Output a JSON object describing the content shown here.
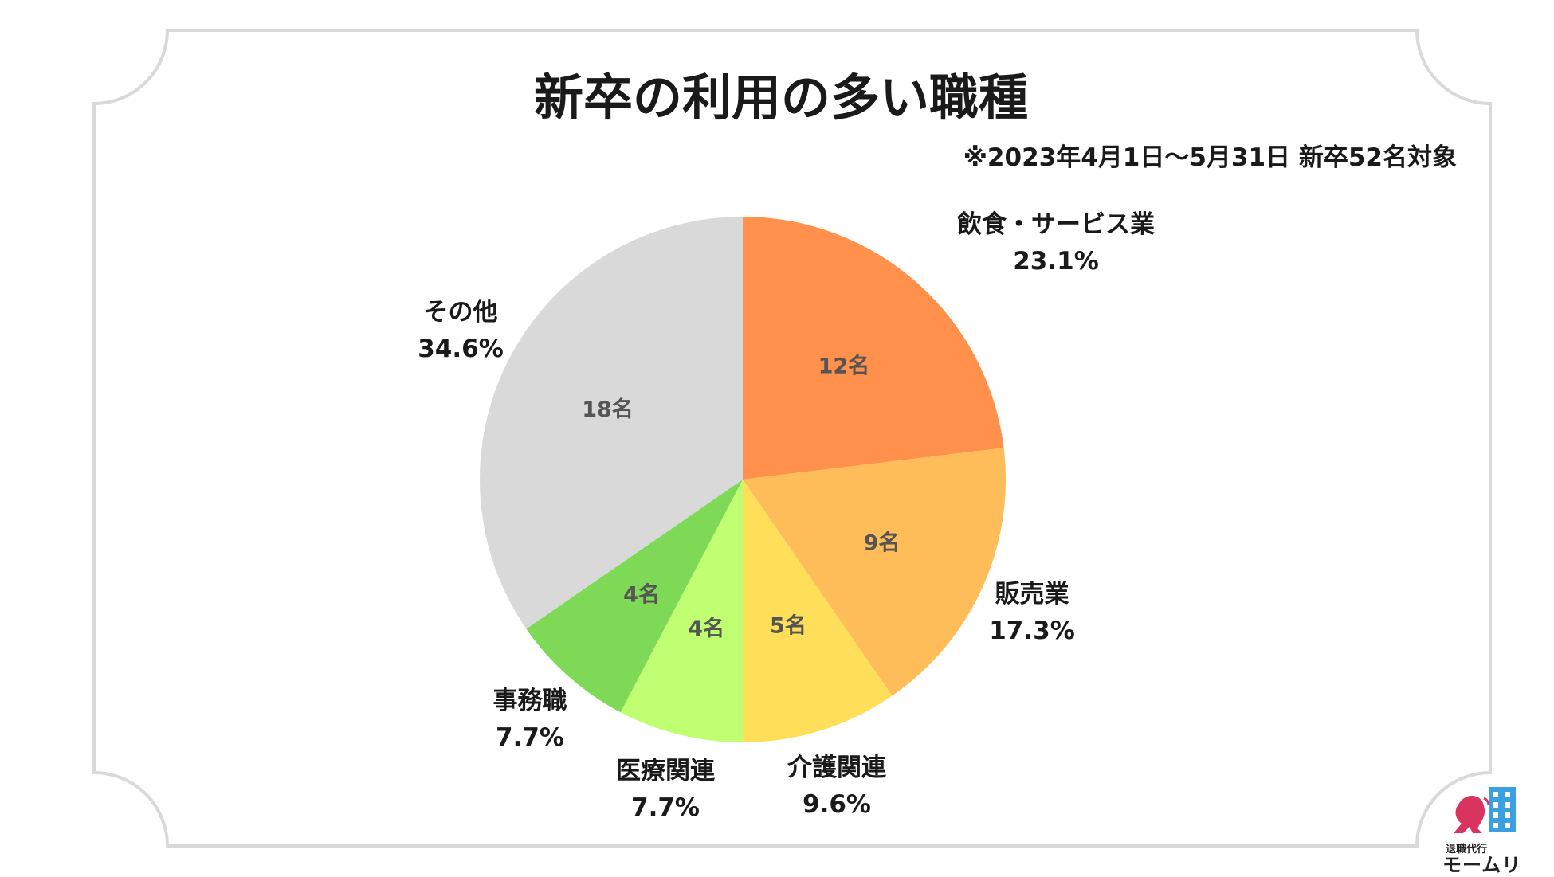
{
  "title": "新卒の利用の多い職種",
  "note": "※2023年4月1日〜5月31日 新卒52名対象",
  "logo": {
    "line1": "退職代行",
    "line2": "モームリ"
  },
  "chart_data": {
    "type": "pie",
    "total": 52,
    "start_angle_deg": 0,
    "direction": "clockwise",
    "slices": [
      {
        "label": "飲食・サービス業",
        "count": 12,
        "count_label": "12名",
        "percent_label": "23.1%",
        "color": "#FF914D"
      },
      {
        "label": "販売業",
        "count": 9,
        "count_label": "9名",
        "percent_label": "17.3%",
        "color": "#FFBD59"
      },
      {
        "label": "介護関連",
        "count": 5,
        "count_label": "5名",
        "percent_label": "9.6%",
        "color": "#FFDE59"
      },
      {
        "label": "医療関連",
        "count": 4,
        "count_label": "4名",
        "percent_label": "7.7%",
        "color": "#C1FF72"
      },
      {
        "label": "事務職",
        "count": 4,
        "count_label": "4名",
        "percent_label": "7.7%",
        "color": "#7ED957"
      },
      {
        "label": "その他",
        "count": 18,
        "count_label": "18名",
        "percent_label": "34.6%",
        "color": "#D9D9D9"
      }
    ]
  }
}
